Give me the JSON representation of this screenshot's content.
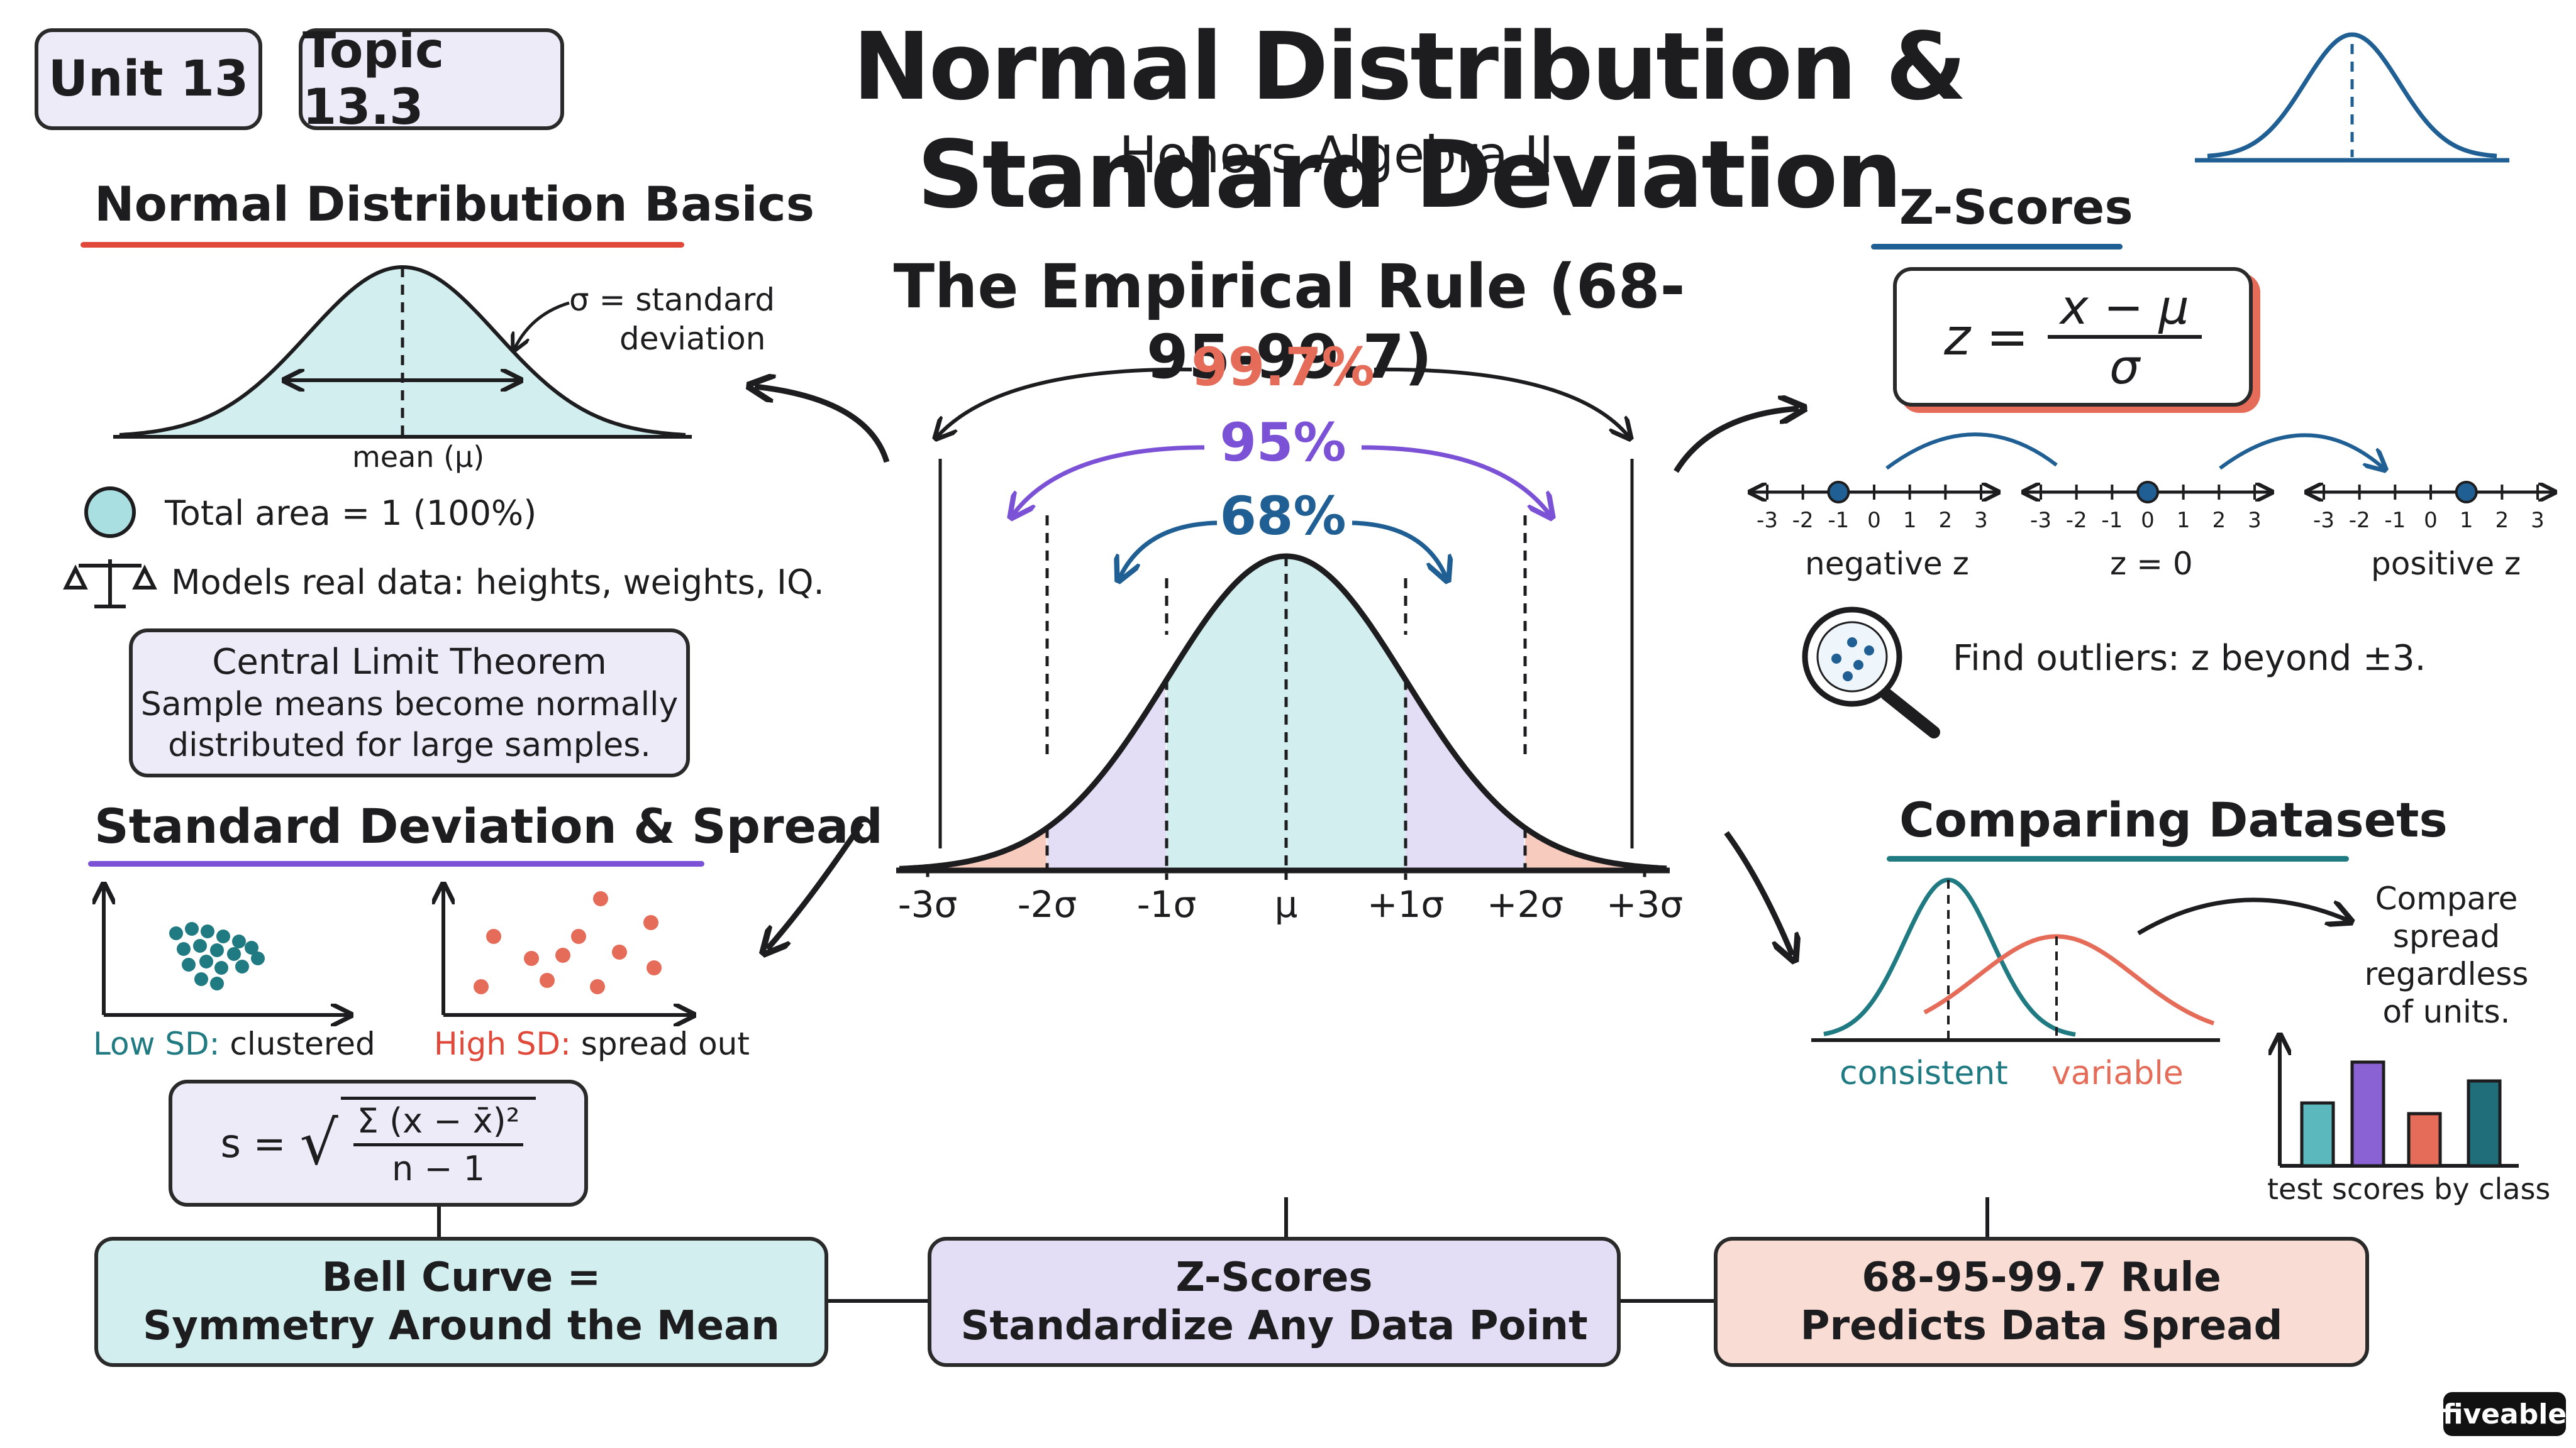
{
  "header": {
    "unit": "Unit 13",
    "topic": "Topic 13.3",
    "title": "Normal Distribution & Standard Deviation",
    "subtitle": "Honors Algebra II"
  },
  "basics": {
    "title": "Normal Distribution Basics",
    "sigma_label_1": "σ = standard",
    "sigma_label_2": "deviation",
    "mean_label": "mean (μ)",
    "area_text": "Total area = 1 (100%)",
    "models_text": "Models real data: heights, weights, IQ.",
    "clt_title": "Central Limit Theorem",
    "clt_line1": "Sample means become normally",
    "clt_line2": "distributed for large samples."
  },
  "spread": {
    "title": "Standard Deviation & Spread",
    "low_prefix": "Low SD:",
    "low_suffix": " clustered",
    "high_prefix": "High SD:",
    "high_suffix": " spread out",
    "formula_lhs": "s  =",
    "formula_num": "Σ (x − x̄)²",
    "formula_den": "n − 1"
  },
  "empirical": {
    "title": "The Empirical Rule (68-95-99.7)",
    "p997": "99.7%",
    "p95": "95%",
    "p68": "68%",
    "ticks": [
      "-3σ",
      "-2σ",
      "-1σ",
      "μ",
      "+1σ",
      "+2σ",
      "+3σ"
    ]
  },
  "zscores": {
    "title": "Z-Scores",
    "formula_z": "z  =",
    "formula_num": "x − μ",
    "formula_den": "σ",
    "line_ticks": [
      "-3",
      "-2",
      "-1",
      "0",
      "1",
      "2",
      "3"
    ],
    "label_negative": "negative z",
    "label_zero": "z = 0",
    "label_positive": "positive z",
    "outliers": "Find outliers: z beyond ±3."
  },
  "comparing": {
    "title": "Comparing Datasets",
    "consistent": "consistent",
    "variable": "variable",
    "compare_1": "Compare",
    "compare_2": "spread",
    "compare_3": "regardless",
    "compare_4": "of units.",
    "bars_caption": "test scores by class"
  },
  "bottom": {
    "b1_line1": "Bell Curve =",
    "b1_line2": "Symmetry Around the Mean",
    "b2_line1": "Z-Scores",
    "b2_line2": "Standardize Any Data Point",
    "b3_line1": "68-95-99.7 Rule",
    "b3_line2": "Predicts Data Spread"
  },
  "brand": "fiveable",
  "colors": {
    "teal": "#1f7a82",
    "blue": "#1f5f93",
    "purple": "#7b52d6",
    "coral": "#e56c58",
    "red_underline": "#e0493a",
    "mint_fill": "#d3eeef",
    "lavender_fill": "#e3def6",
    "peach_fill": "#f7cbbd"
  }
}
